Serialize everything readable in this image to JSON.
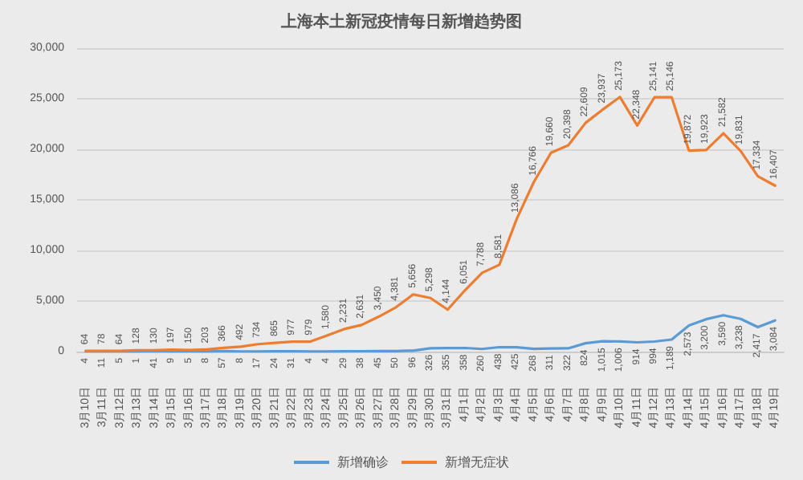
{
  "chart_data": {
    "type": "line",
    "title": "上海本土新冠疫情每日新增趋势图",
    "categories": [
      "3月10日",
      "3月11日",
      "3月12日",
      "3月13日",
      "3月14日",
      "3月15日",
      "3月16日",
      "3月17日",
      "3月18日",
      "3月19日",
      "3月20日",
      "3月21日",
      "3月22日",
      "3月23日",
      "3月24日",
      "3月25日",
      "3月26日",
      "3月27日",
      "3月28日",
      "3月29日",
      "3月30日",
      "3月31日",
      "4月1日",
      "4月2日",
      "4月3日",
      "4月4日",
      "4月5日",
      "4月6日",
      "4月7日",
      "4月8日",
      "4月9日",
      "4月10日",
      "4月11日",
      "4月12日",
      "4月13日",
      "4月14日",
      "4月15日",
      "4月16日",
      "4月17日",
      "4月18日",
      "4月19日"
    ],
    "series": [
      {
        "name": "新增确诊",
        "color": "#5b9bd5",
        "values": [
          4,
          11,
          5,
          1,
          41,
          9,
          5,
          8,
          57,
          8,
          17,
          24,
          31,
          4,
          4,
          29,
          38,
          45,
          50,
          96,
          326,
          355,
          358,
          260,
          438,
          425,
          268,
          311,
          322,
          824,
          1015,
          1006,
          914,
          994,
          1189,
          2573,
          3200,
          3590,
          3238,
          2417,
          3084
        ],
        "value_labels": [
          "4",
          "11",
          "5",
          "1",
          "41",
          "9",
          "5",
          "8",
          "57",
          "8",
          "17",
          "24",
          "31",
          "4",
          "4",
          "29",
          "38",
          "45",
          "50",
          "96",
          "326",
          "355",
          "358",
          "260",
          "438",
          "425",
          "268",
          "311",
          "322",
          "824",
          "1,015",
          "1,006",
          "914",
          "994",
          "1,189",
          "2,573",
          "3,200",
          "3,590",
          "3,238",
          "2,417",
          "3,084"
        ]
      },
      {
        "name": "新增无症状",
        "color": "#ed7d31",
        "values": [
          64,
          78,
          64,
          128,
          130,
          197,
          150,
          203,
          366,
          492,
          734,
          865,
          977,
          979,
          1580,
          2231,
          2631,
          3450,
          4381,
          5656,
          5298,
          4144,
          6051,
          7788,
          8581,
          13086,
          16766,
          19660,
          20398,
          22609,
          23937,
          25173,
          22348,
          25141,
          25146,
          19872,
          19923,
          21582,
          19831,
          17334,
          16407
        ],
        "value_labels": [
          "64",
          "78",
          "64",
          "128",
          "130",
          "197",
          "150",
          "203",
          "366",
          "492",
          "734",
          "865",
          "977",
          "979",
          "1,580",
          "2,231",
          "2,631",
          "3,450",
          "4,381",
          "5,656",
          "5,298",
          "4,144",
          "6,051",
          "7,788",
          "8,581",
          "13,086",
          "16,766",
          "19,660",
          "20,398",
          "22,609",
          "23,937",
          "25,173",
          "22,348",
          "25,141",
          "25,146",
          "19,872",
          "19,923",
          "21,582",
          "19,831",
          "17,334",
          "16,407"
        ]
      }
    ],
    "ylim": [
      0,
      30000
    ],
    "yticks": [
      0,
      {
        "value": 5000,
        "label": "5,000"
      },
      {
        "value": 10000,
        "label": "10,000"
      },
      {
        "value": 15000,
        "label": "15,000"
      },
      {
        "value": 20000,
        "label": "20,000"
      },
      {
        "value": 25000,
        "label": "25,000"
      },
      {
        "value": 30000,
        "label": "30,000"
      }
    ],
    "grid": "y",
    "legend": "bottom",
    "marker": "none",
    "line_style": "solid"
  }
}
